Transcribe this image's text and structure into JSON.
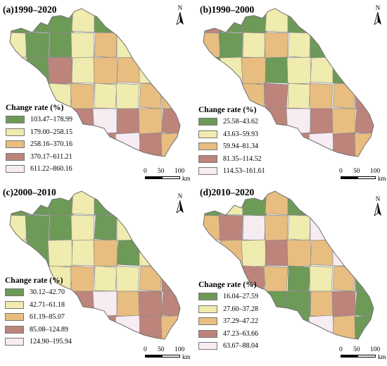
{
  "colors": [
    "#6e9a58",
    "#f0ebae",
    "#e8bd80",
    "#bd847b",
    "#f6ecf2"
  ],
  "legend_title": "Change rate (%)",
  "scale": {
    "ticks": [
      "0",
      "50",
      "100"
    ],
    "unit": "km"
  },
  "north_label": "N",
  "panels": [
    {
      "title": "(a)1990–2020",
      "classes": [
        "103.47–178.99",
        "179.00–258.15",
        "258.16–370.16",
        "370.17–611.21",
        "611.22–860.16"
      ],
      "fill_pattern": [
        0,
        0,
        0,
        1,
        0,
        0,
        1,
        0,
        1,
        0,
        0,
        1,
        2,
        1,
        0,
        2,
        1,
        0,
        3,
        1,
        2,
        2,
        1,
        1,
        2,
        3,
        1,
        2,
        1,
        1,
        2,
        2,
        3,
        3,
        2,
        3,
        4,
        3,
        2,
        3,
        4,
        3,
        4,
        2,
        3,
        4,
        3,
        2
      ]
    },
    {
      "title": "(b)1990–2000",
      "classes": [
        "25.58–43.62",
        "43.63–59.93",
        "59.94–81.34",
        "81.35–114.52",
        "114.53–161.61"
      ],
      "fill_pattern": [
        3,
        0,
        0,
        1,
        0,
        0,
        0,
        1,
        2,
        0,
        1,
        2,
        1,
        0,
        0,
        2,
        0,
        1,
        2,
        0,
        1,
        1,
        0,
        2,
        1,
        3,
        2,
        3,
        1,
        2,
        2,
        3,
        3,
        2,
        3,
        3,
        4,
        3,
        2,
        3,
        4,
        3,
        3,
        2,
        3,
        4,
        3,
        2
      ]
    },
    {
      "title": "(c)2000–2010",
      "classes": [
        "30.12–42.70",
        "42.71–61.18",
        "61.19–85.07",
        "85.08–124.89",
        "124.90–195.94"
      ],
      "fill_pattern": [
        0,
        0,
        0,
        1,
        0,
        0,
        1,
        0,
        1,
        0,
        0,
        1,
        0,
        1,
        1,
        0,
        1,
        0,
        1,
        1,
        2,
        0,
        1,
        1,
        2,
        3,
        1,
        2,
        1,
        1,
        2,
        3,
        3,
        2,
        3,
        3,
        4,
        2,
        3,
        3,
        4,
        3,
        2,
        3,
        3,
        4,
        3,
        2
      ]
    },
    {
      "title": "(d)2010–2020",
      "classes": [
        "16.04–27.59",
        "27.60–37.28",
        "37.29–47.22",
        "47.23–63.66",
        "63.67–88.04"
      ],
      "fill_pattern": [
        0,
        1,
        0,
        2,
        0,
        4,
        2,
        1,
        2,
        3,
        4,
        2,
        1,
        4,
        2,
        1,
        4,
        2,
        1,
        3,
        2,
        2,
        4,
        2,
        1,
        0,
        3,
        2,
        0,
        1,
        2,
        0,
        0,
        3,
        2,
        0,
        0,
        2,
        3,
        0,
        2,
        0,
        1,
        2,
        0,
        4,
        2,
        0
      ]
    }
  ]
}
